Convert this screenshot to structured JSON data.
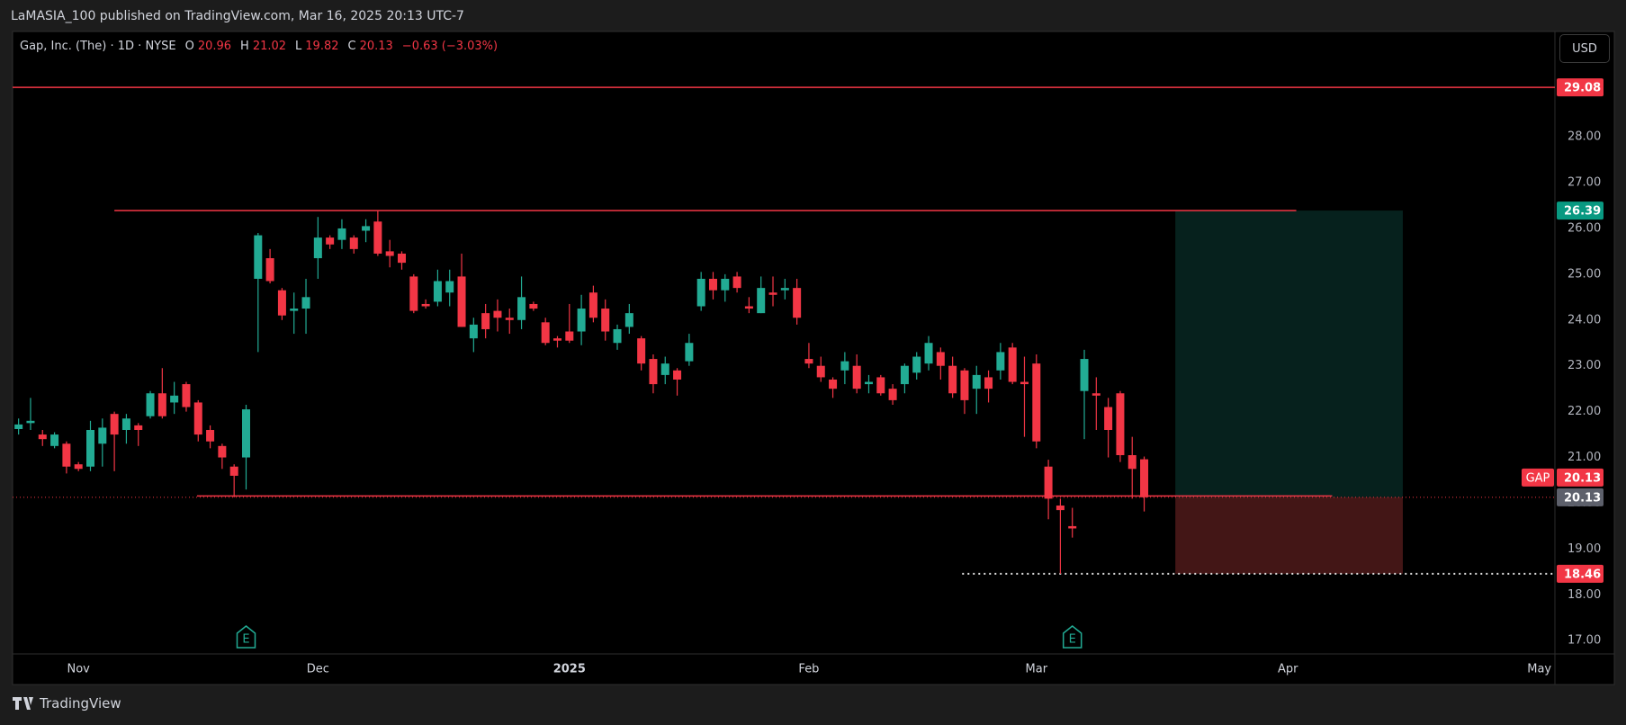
{
  "header": {
    "publisher_line": "LaMASIA_100 published on TradingView.com, Mar 16, 2025 20:13 UTC-7"
  },
  "footer": {
    "brand": "TradingView"
  },
  "currency_button": "USD",
  "chart_data": {
    "type": "candlestick",
    "title": "Gap, Inc. (The) · 1D · NYSE",
    "ohlc_keys": [
      "O",
      "H",
      "L",
      "C"
    ],
    "change_label": "−0.63 (−3.03%)",
    "symbol_tag": "GAP",
    "open": [
      21.62,
      21.75,
      21.5,
      21.25,
      21.3,
      20.85,
      20.8,
      21.3,
      21.95,
      21.6,
      21.7,
      21.9,
      22.4,
      22.2,
      22.6,
      22.2,
      21.6,
      21.25,
      20.8,
      21.0,
      24.9,
      25.35,
      24.65,
      24.2,
      24.25,
      25.35,
      25.8,
      25.75,
      25.8,
      25.95,
      26.15,
      25.5,
      25.45,
      24.95,
      24.35,
      24.4,
      24.6,
      24.95,
      23.6,
      24.15,
      24.2,
      24.05,
      24.0,
      24.35,
      23.95,
      23.6,
      23.75,
      23.75,
      24.6,
      24.25,
      23.5,
      23.85,
      23.6,
      23.15,
      22.8,
      22.9,
      23.1,
      24.3,
      24.9,
      24.65,
      24.95,
      24.3,
      24.15,
      24.6,
      24.65,
      24.7,
      23.15,
      23.0,
      22.7,
      22.9,
      23.0,
      22.6,
      22.75,
      22.5,
      22.6,
      22.85,
      23.05,
      23.3,
      23.0,
      22.9,
      22.5,
      22.75,
      22.9,
      23.4,
      22.65,
      23.05,
      20.8,
      19.95,
      19.5,
      22.45,
      22.4,
      22.1,
      22.4,
      21.05,
      20.96
    ],
    "high": [
      21.85,
      22.3,
      21.6,
      21.55,
      21.35,
      20.9,
      21.8,
      21.85,
      22.0,
      21.95,
      21.75,
      22.45,
      22.95,
      22.65,
      22.65,
      22.25,
      21.7,
      21.3,
      20.85,
      22.15,
      25.9,
      25.55,
      24.7,
      24.6,
      24.9,
      26.25,
      25.85,
      26.2,
      25.85,
      26.2,
      26.4,
      25.75,
      25.5,
      25.0,
      24.45,
      25.1,
      25.1,
      25.45,
      24.05,
      24.35,
      24.45,
      24.25,
      24.95,
      24.4,
      24.05,
      23.65,
      24.35,
      24.55,
      24.75,
      24.45,
      23.9,
      24.35,
      23.65,
      23.25,
      23.2,
      22.95,
      23.7,
      25.05,
      25.05,
      25.0,
      25.05,
      24.5,
      24.95,
      24.95,
      24.9,
      24.9,
      23.5,
      23.2,
      22.75,
      23.3,
      23.25,
      22.8,
      22.8,
      22.6,
      23.05,
      23.3,
      23.65,
      23.4,
      23.2,
      22.95,
      23.0,
      22.9,
      23.5,
      23.5,
      23.2,
      23.25,
      20.95,
      20.1,
      19.9,
      23.35,
      22.75,
      22.3,
      22.45,
      21.45,
      21.02
    ],
    "low": [
      21.5,
      21.6,
      21.25,
      21.2,
      20.65,
      20.7,
      20.7,
      20.8,
      20.7,
      21.3,
      21.25,
      21.85,
      21.85,
      21.95,
      22.0,
      21.35,
      21.2,
      20.75,
      20.13,
      20.3,
      23.3,
      24.8,
      24.0,
      23.7,
      23.7,
      24.9,
      25.55,
      25.55,
      25.45,
      25.7,
      25.4,
      25.15,
      25.1,
      24.15,
      24.25,
      24.3,
      24.3,
      23.85,
      23.3,
      23.6,
      23.75,
      23.7,
      23.8,
      24.2,
      23.45,
      23.4,
      23.5,
      23.45,
      23.95,
      23.55,
      23.35,
      23.7,
      22.9,
      22.4,
      22.6,
      22.35,
      23.0,
      24.2,
      24.45,
      24.4,
      24.6,
      24.15,
      24.15,
      24.3,
      24.45,
      23.9,
      22.95,
      22.65,
      22.3,
      22.6,
      22.4,
      22.4,
      22.35,
      22.15,
      22.4,
      22.7,
      22.9,
      22.7,
      22.3,
      21.95,
      21.95,
      22.2,
      22.7,
      22.6,
      21.45,
      21.2,
      19.65,
      18.46,
      19.25,
      21.4,
      21.6,
      21.0,
      20.9,
      20.1,
      19.82
    ],
    "close": [
      21.72,
      21.8,
      21.4,
      21.5,
      20.8,
      20.75,
      21.6,
      21.65,
      21.5,
      21.85,
      21.6,
      22.4,
      21.9,
      22.35,
      22.1,
      21.5,
      21.35,
      21.0,
      20.6,
      22.05,
      25.85,
      24.85,
      24.1,
      24.25,
      24.5,
      25.8,
      25.65,
      26.0,
      25.55,
      26.05,
      25.45,
      25.4,
      25.25,
      24.2,
      24.3,
      24.85,
      24.85,
      23.85,
      23.9,
      23.8,
      24.05,
      24.0,
      24.5,
      24.25,
      23.5,
      23.55,
      23.55,
      24.25,
      24.05,
      23.75,
      23.8,
      24.15,
      23.05,
      22.6,
      23.05,
      22.7,
      23.5,
      24.9,
      24.65,
      24.9,
      24.7,
      24.25,
      24.7,
      24.55,
      24.7,
      24.05,
      23.05,
      22.75,
      22.5,
      23.1,
      22.5,
      22.65,
      22.4,
      22.25,
      23.0,
      23.2,
      23.5,
      23.0,
      22.4,
      22.25,
      22.8,
      22.5,
      23.3,
      22.65,
      22.6,
      21.35,
      20.1,
      19.85,
      19.45,
      23.15,
      22.35,
      21.6,
      21.05,
      20.75,
      20.13
    ],
    "up_color": "#22ab94",
    "down_color": "#f23645",
    "xlim": [
      -0.5,
      128.3
    ],
    "xticks": [
      {
        "value": 5,
        "label": "Nov"
      },
      {
        "value": 25,
        "label": "Dec"
      },
      {
        "value": 46,
        "label": "2025"
      },
      {
        "value": 66,
        "label": "Feb"
      },
      {
        "value": 85,
        "label": "Mar"
      },
      {
        "value": 106,
        "label": "Apr"
      },
      {
        "value": 127,
        "label": "May"
      }
    ],
    "ylim": [
      16.71,
      30.28
    ],
    "yticks": [
      {
        "value": 17,
        "label": "17.00"
      },
      {
        "value": 18,
        "label": "18.00"
      },
      {
        "value": 19,
        "label": "19.00"
      },
      {
        "value": 20,
        "label": "20.00"
      },
      {
        "value": 21,
        "label": "21.00"
      },
      {
        "value": 22,
        "label": "22.00"
      },
      {
        "value": 23,
        "label": "23.00"
      },
      {
        "value": 24,
        "label": "24.00"
      },
      {
        "value": 25,
        "label": "25.00"
      },
      {
        "value": 26,
        "label": "26.00"
      },
      {
        "value": 27,
        "label": "27.00"
      },
      {
        "value": 28,
        "label": "28.00"
      }
    ],
    "levels": [
      {
        "value": 29.08,
        "color": "#f23645"
      }
    ],
    "trend_lines": [
      {
        "value": 26.39,
        "start": 8,
        "end": 106.7,
        "color": "#f23645"
      },
      {
        "value": 20.16,
        "start": 14.9,
        "end": 109.7,
        "color": "#f23645"
      }
    ],
    "position": {
      "entry": 20.13,
      "target": 26.39,
      "stop": 18.46,
      "start": 96.6,
      "end": 115.6,
      "stop_line_start": 78.8
    },
    "events": [
      {
        "x": 19,
        "label": "E"
      },
      {
        "x": 88,
        "label": "E"
      }
    ]
  }
}
